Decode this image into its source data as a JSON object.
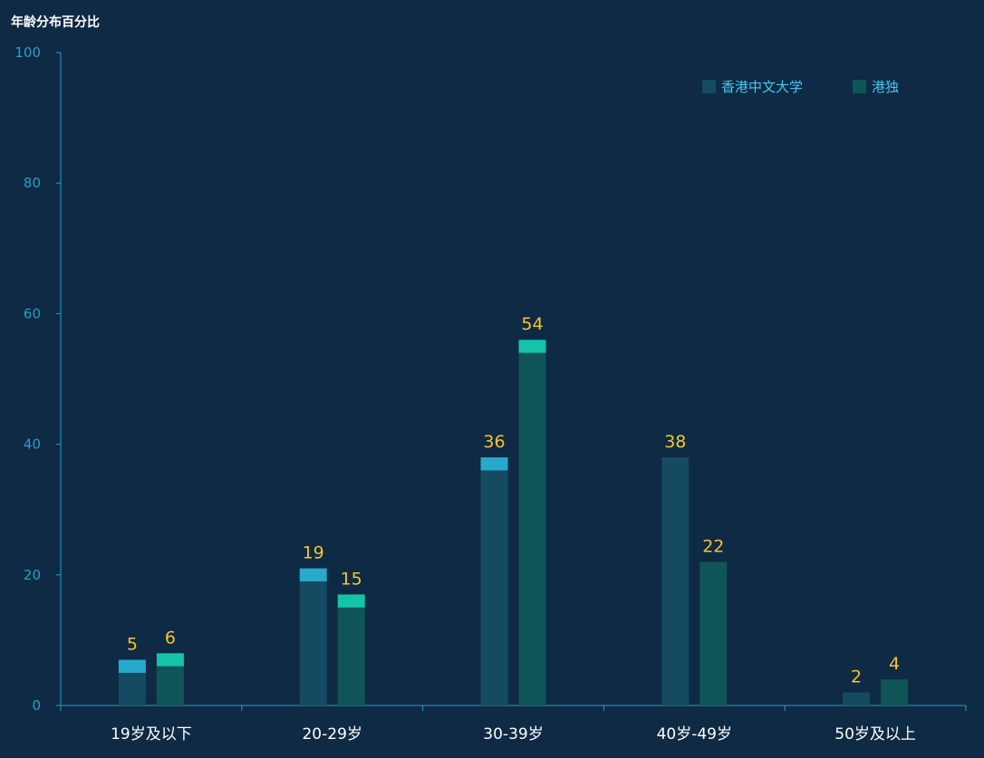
{
  "chart_data": {
    "type": "bar",
    "title": "年龄分布百分比",
    "categories": [
      "19岁及以下",
      "20-29岁",
      "30-39岁",
      "40岁-49岁",
      "50岁及以上"
    ],
    "series": [
      {
        "name": "香港中文大学",
        "values": [
          5,
          19,
          36,
          38,
          2
        ],
        "color": "#154b62",
        "cap_color": "#27a9cb"
      },
      {
        "name": "港独",
        "values": [
          6,
          15,
          54,
          22,
          4
        ],
        "color": "#0f5558",
        "cap_color": "#14c3a8"
      }
    ],
    "caps": [
      [
        true,
        true
      ],
      [
        true,
        true
      ],
      [
        true,
        true
      ],
      [
        false,
        false
      ],
      [
        false,
        false
      ]
    ],
    "cap_value": 2,
    "ylim": [
      0,
      100
    ],
    "yticks": [
      0,
      20,
      40,
      60,
      80,
      100
    ],
    "grid": false,
    "legend_position": "top-right",
    "colors": {
      "background": "#0e2a44",
      "axis": "#2a9ec7",
      "label": "#f5c431",
      "tick_x": "#ffffff"
    }
  }
}
